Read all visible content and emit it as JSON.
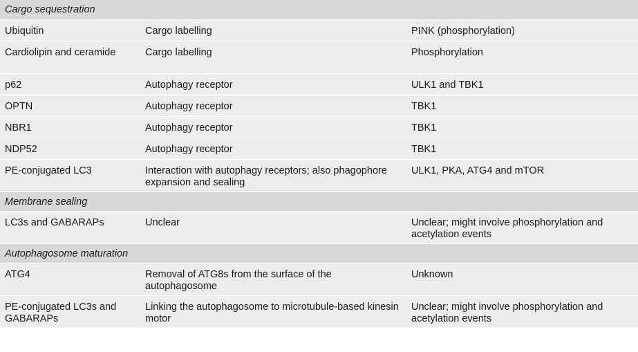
{
  "sections": [
    {
      "title": "Cargo sequestration",
      "rows": [
        {
          "a": "Ubiquitin",
          "b": "Cargo labelling",
          "c": "PINK (phosphorylation)"
        },
        {
          "a": "Cardiolipin and ceramide",
          "b": "Cargo labelling",
          "c": "Phosphorylation"
        },
        {
          "a": "p62",
          "b": "Autophagy receptor",
          "c": "ULK1 and TBK1"
        },
        {
          "a": "OPTN",
          "b": "Autophagy receptor",
          "c": "TBK1"
        },
        {
          "a": "NBR1",
          "b": "Autophagy receptor",
          "c": "TBK1"
        },
        {
          "a": "NDP52",
          "b": "Autophagy receptor",
          "c": "TBK1"
        },
        {
          "a": "PE-conjugated LC3",
          "b": "Interaction with autophagy receptors; also phagophore expansion and sealing",
          "c": "ULK1, PKA, ATG4 and mTOR"
        }
      ]
    },
    {
      "title": "Membrane sealing",
      "rows": [
        {
          "a": "LC3s and GABARAPs",
          "b": "Unclear",
          "c": "Unclear; might involve phosphorylation and acetylation events"
        }
      ]
    },
    {
      "title": "Autophagosome maturation",
      "rows": [
        {
          "a": "ATG4",
          "b": "Removal of ATG8s from the surface of the autophagosome",
          "c": "Unknown"
        },
        {
          "a": "PE-conjugated LC3s and GABARAPs",
          "b": "Linking the autophagosome to microtubule-based kinesin motor",
          "c": "Unclear; might involve phosphorylation and acetylation events"
        }
      ]
    }
  ]
}
